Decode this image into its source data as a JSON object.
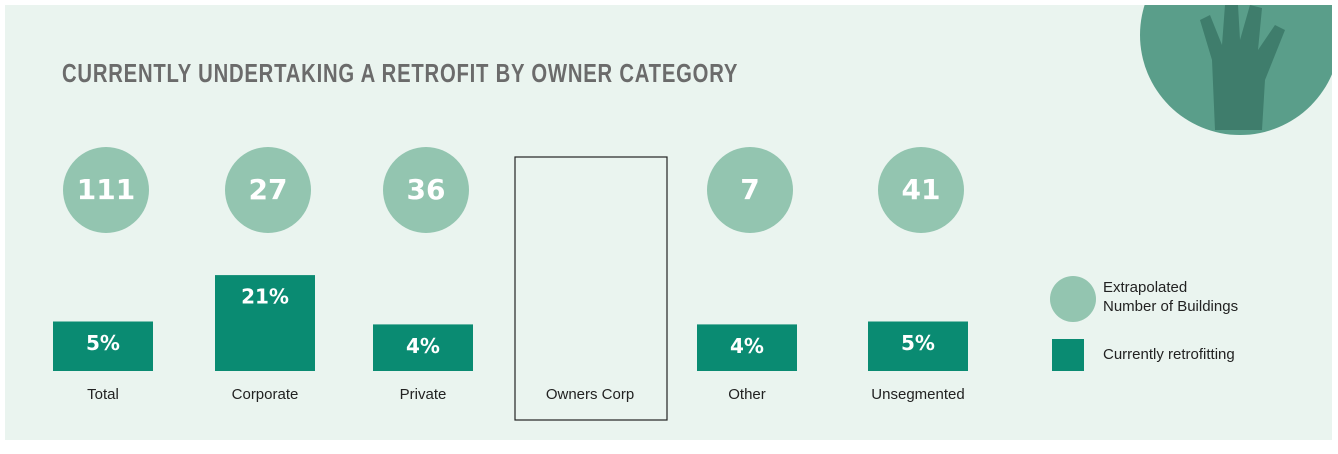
{
  "chart_data": {
    "type": "infographic",
    "title": "CURRENTLY UNDERTAKING A RETROFIT BY OWNER CATEGORY",
    "categories": [
      "Total",
      "Corporate",
      "Private",
      "Owners Corp",
      "Other",
      "Unsegmented"
    ],
    "series": [
      {
        "name": "Extrapolated Number of Buildings",
        "color": "#93c5b0",
        "values": [
          111,
          27,
          36,
          null,
          7,
          41
        ]
      },
      {
        "name": "Currently retrofitting",
        "color": "#0a8b72",
        "values": [
          5,
          21,
          4,
          null,
          4,
          5
        ],
        "value_labels": [
          "5%",
          "21%",
          "4%",
          null,
          "4%",
          "5%"
        ]
      }
    ]
  }
}
